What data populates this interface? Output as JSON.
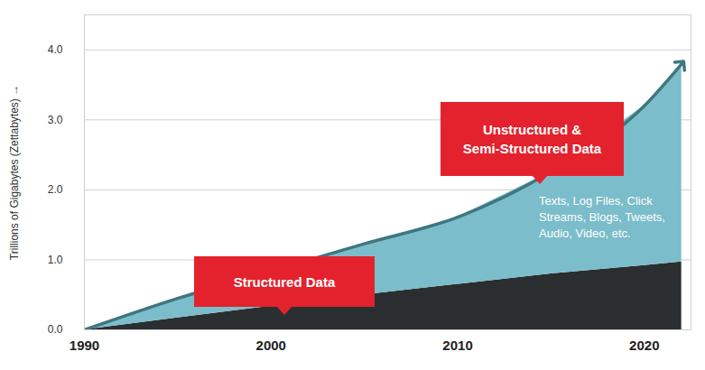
{
  "chart_data": {
    "type": "area",
    "stacked": true,
    "x": [
      1990,
      1995,
      2000,
      2005,
      2010,
      2015,
      2020,
      2022
    ],
    "series": [
      {
        "name": "Structured Data",
        "color": "#2b2e30",
        "values": [
          0,
          0.17,
          0.34,
          0.5,
          0.65,
          0.8,
          0.92,
          0.97
        ]
      },
      {
        "name": "Unstructured & Semi-Structured Data",
        "color": "#7bbdca",
        "values": [
          0,
          0.28,
          0.5,
          0.73,
          0.96,
          1.46,
          2.28,
          2.83
        ]
      }
    ],
    "xlim": [
      1990,
      2022.5
    ],
    "xticks": [
      1990,
      2000,
      2010,
      2020
    ],
    "ylim": [
      0,
      4.5
    ],
    "yticks": [
      0,
      1,
      2,
      3,
      4
    ],
    "y_label": "Trillions of Gigabytes (Zettabytes)",
    "grid": true,
    "annotations": [
      {
        "text": "Texts, Log Files, Click Streams, Blogs, Tweets, Audio, Video, etc."
      }
    ]
  }
}
